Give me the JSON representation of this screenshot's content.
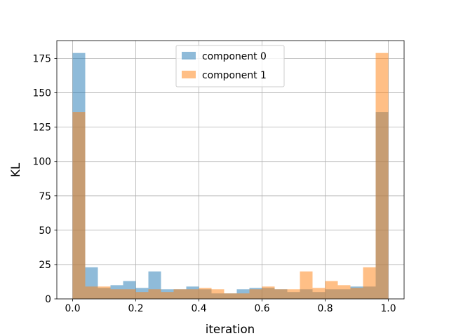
{
  "chart_data": {
    "type": "bar",
    "title": "",
    "xlabel": "iteration",
    "ylabel": "KL",
    "xlim": [
      -0.05,
      1.05
    ],
    "ylim": [
      0,
      188
    ],
    "grid": true,
    "legend_position": "top-center",
    "bin_width": 0.04,
    "bin_left_edges": [
      0.0,
      0.04,
      0.08,
      0.12,
      0.16,
      0.2,
      0.24,
      0.28,
      0.32,
      0.36,
      0.4,
      0.44,
      0.48,
      0.52,
      0.56,
      0.6,
      0.64,
      0.68,
      0.72,
      0.76,
      0.8,
      0.84,
      0.88,
      0.92,
      0.96
    ],
    "series": [
      {
        "name": "component 0",
        "color": "#1f77b4",
        "values": [
          179,
          23,
          8,
          10,
          13,
          8,
          20,
          7,
          7,
          9,
          7,
          4,
          4,
          7,
          8,
          8,
          7,
          5,
          7,
          5,
          7,
          7,
          9,
          9,
          136
        ]
      },
      {
        "name": "component 1",
        "color": "#ff7f0e",
        "values": [
          136,
          9,
          9,
          7,
          7,
          5,
          7,
          5,
          7,
          7,
          8,
          7,
          4,
          4,
          7,
          9,
          7,
          7,
          20,
          8,
          13,
          10,
          8,
          23,
          179
        ]
      }
    ],
    "x_ticks": [
      0.0,
      0.2,
      0.4,
      0.6,
      0.8,
      1.0
    ],
    "x_tick_labels": [
      "0.0",
      "0.2",
      "0.4",
      "0.6",
      "0.8",
      "1.0"
    ],
    "y_ticks": [
      0,
      25,
      50,
      75,
      100,
      125,
      150,
      175
    ],
    "y_tick_labels": [
      "0",
      "25",
      "50",
      "75",
      "100",
      "125",
      "150",
      "175"
    ],
    "alpha": 0.5
  }
}
